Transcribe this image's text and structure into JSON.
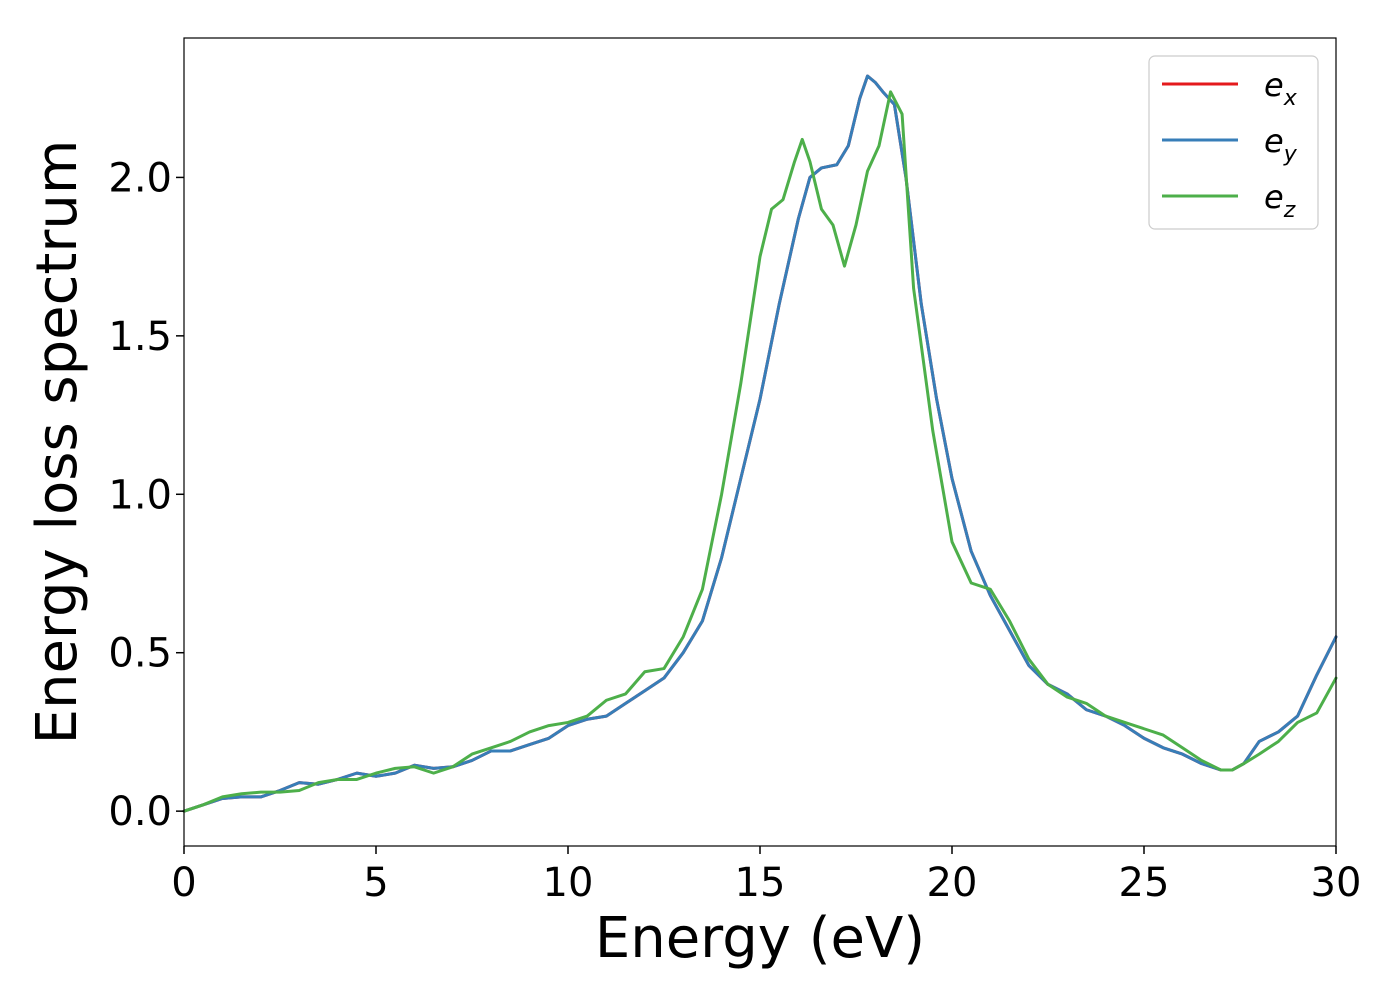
{
  "chart_data": {
    "type": "line",
    "title": "",
    "xlabel": "Energy (eV)",
    "ylabel": "Energy loss spectrum",
    "xlim": [
      0,
      30
    ],
    "ylim": [
      -0.11,
      2.44
    ],
    "xticks": [
      0,
      5,
      10,
      15,
      20,
      25,
      30
    ],
    "xtick_labels": [
      "0",
      "5",
      "10",
      "15",
      "20",
      "25",
      "30"
    ],
    "yticks": [
      0.0,
      0.5,
      1.0,
      1.5,
      2.0
    ],
    "ytick_labels": [
      "0.0",
      "0.5",
      "1.0",
      "1.5",
      "2.0"
    ],
    "grid": false,
    "legend_position": "top-right",
    "series": [
      {
        "name": "e_x",
        "legend_main": "e",
        "legend_sub": "x",
        "color": "#e41a1c",
        "x": [
          0,
          0.5,
          1,
          1.5,
          2,
          2.5,
          3,
          3.5,
          4,
          4.5,
          5,
          5.5,
          6,
          6.5,
          7,
          7.5,
          8,
          8.5,
          9,
          9.5,
          10,
          10.5,
          11,
          11.5,
          12,
          12.5,
          13,
          13.5,
          14,
          14.5,
          15,
          15.5,
          16,
          16.3,
          16.6,
          17,
          17.3,
          17.6,
          17.8,
          18,
          18.2,
          18.5,
          18.8,
          19.2,
          19.6,
          20,
          20.5,
          21,
          21.5,
          22,
          22.5,
          23,
          23.5,
          24,
          24.5,
          25,
          25.5,
          26,
          26.5,
          27,
          27.3,
          27.6,
          28,
          28.5,
          29,
          29.5,
          30
        ],
        "y": [
          0.0,
          0.02,
          0.04,
          0.045,
          0.045,
          0.065,
          0.09,
          0.085,
          0.1,
          0.12,
          0.11,
          0.12,
          0.145,
          0.135,
          0.14,
          0.16,
          0.19,
          0.19,
          0.21,
          0.23,
          0.27,
          0.29,
          0.3,
          0.34,
          0.38,
          0.42,
          0.5,
          0.6,
          0.8,
          1.05,
          1.3,
          1.6,
          1.87,
          2.0,
          2.03,
          2.04,
          2.1,
          2.25,
          2.32,
          2.3,
          2.27,
          2.23,
          2.0,
          1.6,
          1.3,
          1.05,
          0.82,
          0.68,
          0.57,
          0.46,
          0.4,
          0.37,
          0.32,
          0.3,
          0.27,
          0.23,
          0.2,
          0.18,
          0.15,
          0.13,
          0.13,
          0.15,
          0.22,
          0.25,
          0.3,
          0.43,
          0.55
        ]
      },
      {
        "name": "e_y",
        "legend_main": "e",
        "legend_sub": "y",
        "color": "#377eb8",
        "x": [
          0,
          0.5,
          1,
          1.5,
          2,
          2.5,
          3,
          3.5,
          4,
          4.5,
          5,
          5.5,
          6,
          6.5,
          7,
          7.5,
          8,
          8.5,
          9,
          9.5,
          10,
          10.5,
          11,
          11.5,
          12,
          12.5,
          13,
          13.5,
          14,
          14.5,
          15,
          15.5,
          16,
          16.3,
          16.6,
          17,
          17.3,
          17.6,
          17.8,
          18,
          18.2,
          18.5,
          18.8,
          19.2,
          19.6,
          20,
          20.5,
          21,
          21.5,
          22,
          22.5,
          23,
          23.5,
          24,
          24.5,
          25,
          25.5,
          26,
          26.5,
          27,
          27.3,
          27.6,
          28,
          28.5,
          29,
          29.5,
          30
        ],
        "y": [
          0.0,
          0.02,
          0.04,
          0.045,
          0.045,
          0.065,
          0.09,
          0.085,
          0.1,
          0.12,
          0.11,
          0.12,
          0.145,
          0.135,
          0.14,
          0.16,
          0.19,
          0.19,
          0.21,
          0.23,
          0.27,
          0.29,
          0.3,
          0.34,
          0.38,
          0.42,
          0.5,
          0.6,
          0.8,
          1.05,
          1.3,
          1.6,
          1.87,
          2.0,
          2.03,
          2.04,
          2.1,
          2.25,
          2.32,
          2.3,
          2.27,
          2.23,
          2.0,
          1.6,
          1.3,
          1.05,
          0.82,
          0.68,
          0.57,
          0.46,
          0.4,
          0.37,
          0.32,
          0.3,
          0.27,
          0.23,
          0.2,
          0.18,
          0.15,
          0.13,
          0.13,
          0.15,
          0.22,
          0.25,
          0.3,
          0.43,
          0.55
        ]
      },
      {
        "name": "e_z",
        "legend_main": "e",
        "legend_sub": "z",
        "color": "#4daf4a",
        "x": [
          0,
          0.5,
          1,
          1.5,
          2,
          2.5,
          3,
          3.5,
          4,
          4.5,
          5,
          5.5,
          6,
          6.5,
          7,
          7.5,
          8,
          8.5,
          9,
          9.5,
          10,
          10.5,
          11,
          11.5,
          12,
          12.5,
          13,
          13.5,
          14,
          14.5,
          15,
          15.3,
          15.6,
          15.9,
          16.1,
          16.3,
          16.6,
          16.9,
          17.2,
          17.5,
          17.8,
          18.1,
          18.4,
          18.7,
          19.0,
          19.5,
          20,
          20.5,
          21,
          21.5,
          22,
          22.5,
          23,
          23.5,
          24,
          24.5,
          25,
          25.5,
          26,
          26.5,
          27,
          27.3,
          27.6,
          28,
          28.5,
          29,
          29.5,
          30
        ],
        "y": [
          0.0,
          0.02,
          0.045,
          0.055,
          0.06,
          0.06,
          0.065,
          0.09,
          0.1,
          0.1,
          0.12,
          0.135,
          0.14,
          0.12,
          0.14,
          0.18,
          0.2,
          0.22,
          0.25,
          0.27,
          0.28,
          0.3,
          0.35,
          0.37,
          0.44,
          0.45,
          0.55,
          0.7,
          1.0,
          1.35,
          1.75,
          1.9,
          1.93,
          2.05,
          2.12,
          2.05,
          1.9,
          1.85,
          1.72,
          1.85,
          2.02,
          2.1,
          2.27,
          2.2,
          1.65,
          1.2,
          0.85,
          0.72,
          0.7,
          0.6,
          0.48,
          0.4,
          0.36,
          0.34,
          0.3,
          0.28,
          0.26,
          0.24,
          0.2,
          0.16,
          0.13,
          0.13,
          0.15,
          0.18,
          0.22,
          0.28,
          0.31,
          0.42
        ]
      }
    ]
  }
}
